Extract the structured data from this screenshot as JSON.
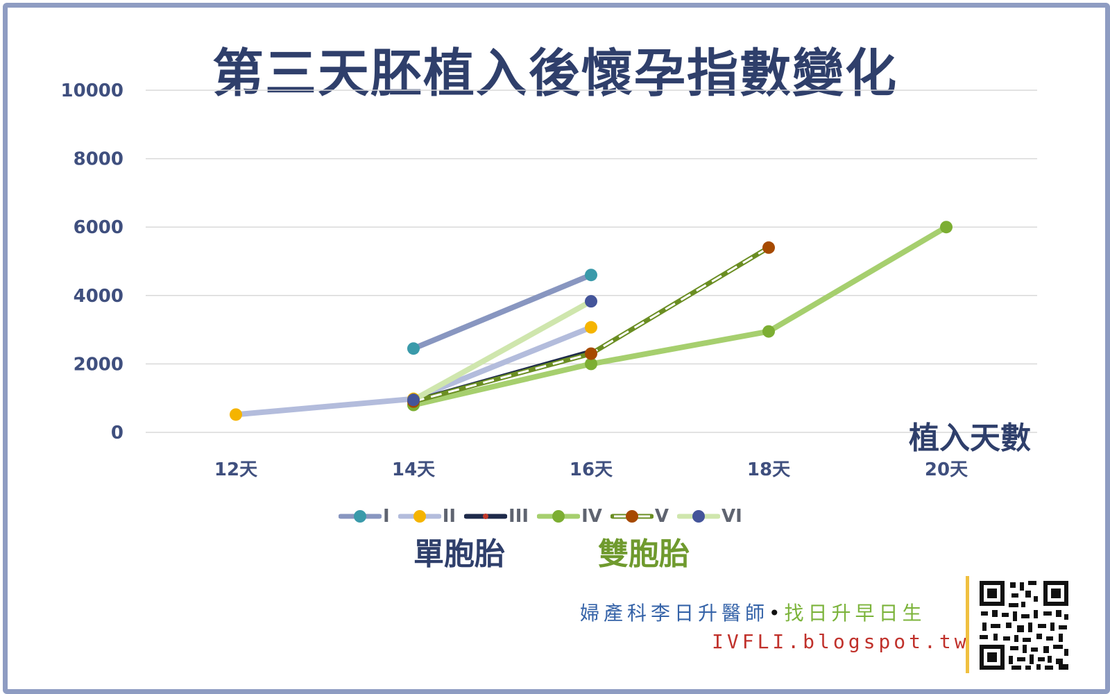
{
  "title": "第三天胚植入後懷孕指數變化",
  "x_axis_title": "植入天數",
  "group_labels": {
    "singleton": "單胞胎",
    "twins": "雙胞胎"
  },
  "footer": {
    "doctor": "婦產科李日升醫師",
    "separator": "•",
    "slogan": "找日升早日生",
    "url": "IVFLI.blogspot.tw"
  },
  "colors": {
    "frame": "#8e9cc2",
    "title": "#2f3f6b",
    "gridline": "#d9d9d9",
    "singleton_label": "#2f3f6b",
    "twins_label": "#6f9a2e"
  },
  "qr_code": "qr-code-icon",
  "chart_data": {
    "type": "line",
    "title": "第三天胚植入後懷孕指數變化",
    "xlabel": "植入天數",
    "ylabel": "",
    "categories": [
      "12天",
      "14天",
      "16天",
      "18天",
      "20天"
    ],
    "y_ticks": [
      "0",
      "2000",
      "4000",
      "6000",
      "8000",
      "10000"
    ],
    "ylim": [
      0,
      10000
    ],
    "grid": true,
    "legend_position": "bottom",
    "series": [
      {
        "name": "I",
        "line_color": "#8896c0",
        "marker_color": "#3a9aaa",
        "dashed": false,
        "points": [
          [
            14,
            2450
          ],
          [
            16,
            4600
          ]
        ]
      },
      {
        "name": "II",
        "line_color": "#b3bcdc",
        "marker_color": "#f5b400",
        "dashed": false,
        "points": [
          [
            12,
            520
          ],
          [
            14,
            980
          ],
          [
            16,
            3070
          ]
        ]
      },
      {
        "name": "III",
        "line_color": "#1e2a4a",
        "marker_color": "#c0392b",
        "dashed": false,
        "points": [
          [
            14,
            900
          ],
          [
            16,
            2350
          ]
        ]
      },
      {
        "name": "IV",
        "line_color": "#a6cf6e",
        "marker_color": "#7cae32",
        "dashed": false,
        "points": [
          [
            14,
            800
          ],
          [
            16,
            2000
          ],
          [
            18,
            2950
          ],
          [
            20,
            6000
          ]
        ]
      },
      {
        "name": "V",
        "line_color": "#6b8e23",
        "marker_color": "#a64a00",
        "dashed": true,
        "points": [
          [
            14,
            900
          ],
          [
            16,
            2300
          ],
          [
            18,
            5400
          ]
        ]
      },
      {
        "name": "VI",
        "line_color": "#cfe6ad",
        "marker_color": "#44559a",
        "dashed": false,
        "points": [
          [
            14,
            950
          ],
          [
            16,
            3830
          ]
        ]
      }
    ]
  }
}
